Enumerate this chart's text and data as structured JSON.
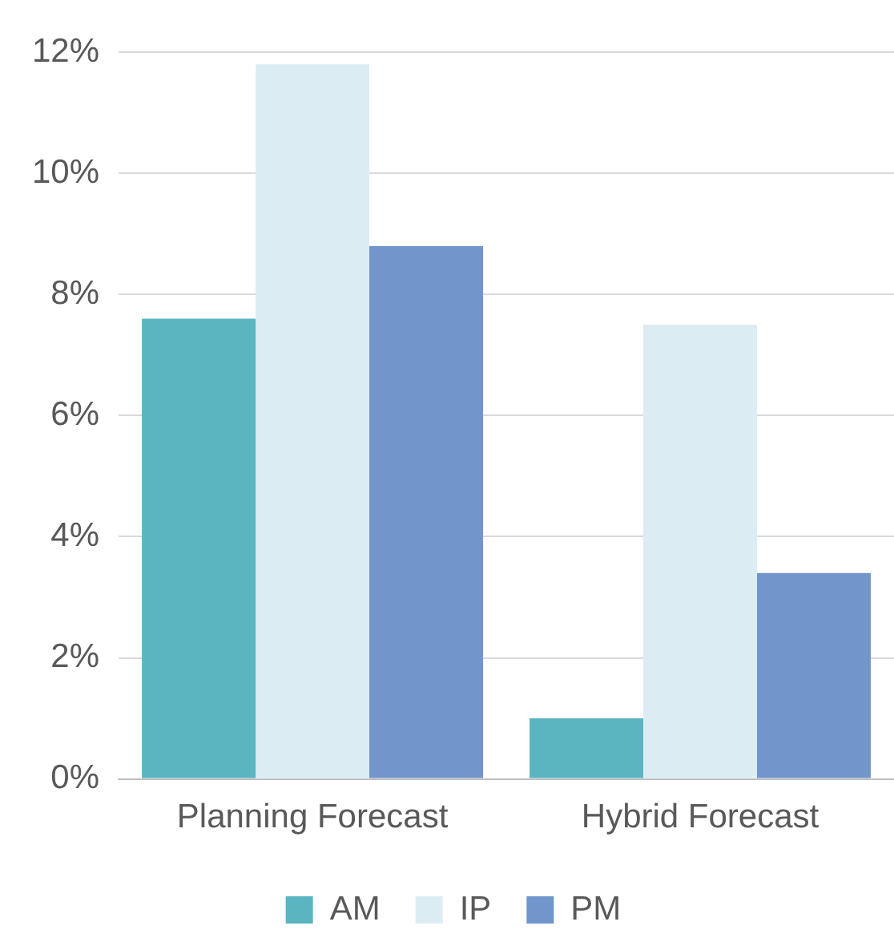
{
  "chart_data": {
    "type": "bar",
    "categories": [
      "Planning Forecast",
      "Hybrid Forecast"
    ],
    "series": [
      {
        "name": "AM",
        "color": "#5bb5c1",
        "values": [
          7.6,
          1.0
        ]
      },
      {
        "name": "IP",
        "color": "#dbedf3",
        "values": [
          11.8,
          7.5
        ]
      },
      {
        "name": "PM",
        "color": "#7295cc",
        "values": [
          8.8,
          3.4
        ]
      }
    ],
    "ylim": [
      0,
      12
    ],
    "yticks": [
      {
        "value": 0,
        "label": "0%"
      },
      {
        "value": 2,
        "label": "2%"
      },
      {
        "value": 4,
        "label": "4%"
      },
      {
        "value": 6,
        "label": "6%"
      },
      {
        "value": 8,
        "label": "8%"
      },
      {
        "value": 10,
        "label": "10%"
      },
      {
        "value": 12,
        "label": "12%"
      }
    ],
    "grid": "y",
    "legend": "bottom"
  }
}
